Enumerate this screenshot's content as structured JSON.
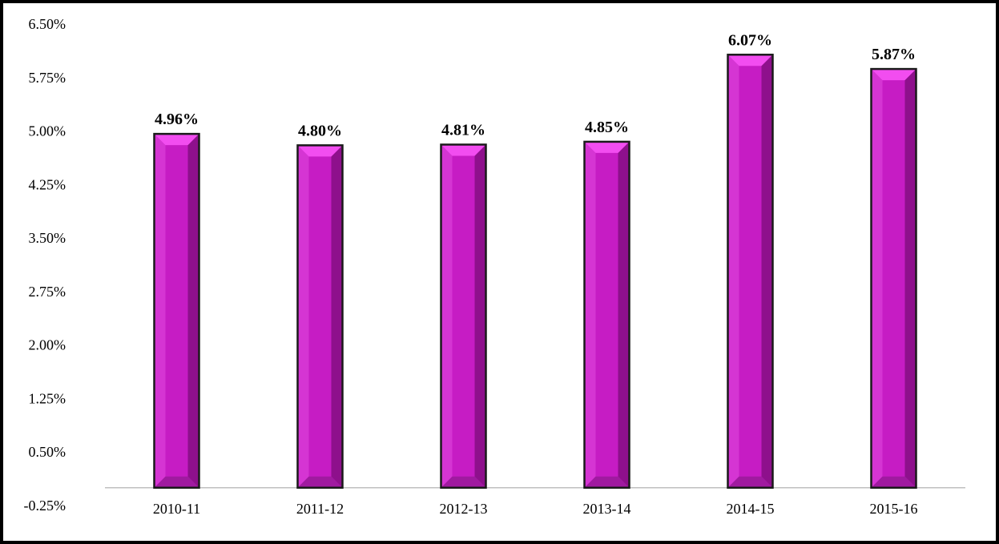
{
  "chart_data": {
    "type": "bar",
    "categories": [
      "2010-11",
      "2011-12",
      "2012-13",
      "2013-14",
      "2014-15",
      "2015-16"
    ],
    "values": [
      4.96,
      4.8,
      4.81,
      4.85,
      6.07,
      5.87
    ],
    "data_labels": [
      "4.96%",
      "4.80%",
      "4.81%",
      "4.85%",
      "6.07%",
      "5.87%"
    ],
    "yticks": [
      -0.25,
      0.5,
      1.25,
      2.0,
      2.75,
      3.5,
      4.25,
      5.0,
      5.75,
      6.5
    ],
    "ytick_labels": [
      "-0.25%",
      "0.50%",
      "1.25%",
      "2.00%",
      "2.75%",
      "3.50%",
      "4.25%",
      "5.00%",
      "5.75%",
      "6.50%"
    ],
    "ylim": [
      -0.25,
      6.5
    ],
    "baseline": 0,
    "grid": false,
    "legend": "none",
    "title": "",
    "xlabel": "",
    "ylabel": "",
    "colors": {
      "bar_face": "#C61CC4",
      "bar_top": "#F24DF0",
      "bar_left": "#D535D3",
      "bar_right": "#8E108C",
      "bar_bottom": "#A01AA0",
      "axis": "#BFBFBF"
    }
  }
}
